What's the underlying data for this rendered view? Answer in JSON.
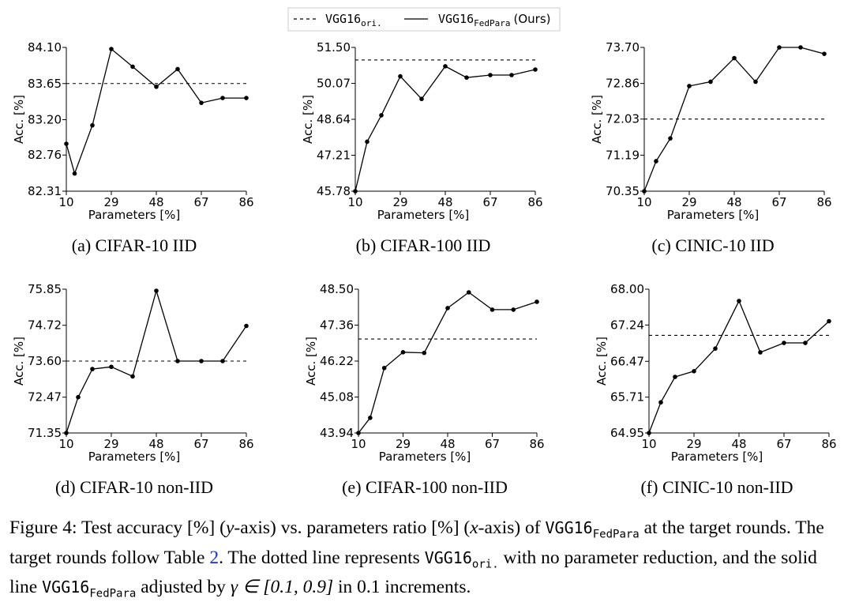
{
  "legend": {
    "original": "VGG16",
    "original_sub": "ori.",
    "fedpara": "VGG16",
    "fedpara_sub": "FedPara",
    "fedpara_suffix": "(Ours)"
  },
  "chart_data": [
    {
      "type": "line",
      "caption": "(a) CIFAR-10 IID",
      "xlabel": "Parameters [%]",
      "ylabel": "Acc. [%]",
      "xticks": [
        10,
        29,
        48,
        67,
        86
      ],
      "yticks": [
        "82.31",
        "82.76",
        "83.20",
        "83.65",
        "84.10"
      ],
      "ylim": [
        82.31,
        84.1
      ],
      "xlim": [
        10,
        86
      ],
      "baseline": 83.65,
      "series": [
        {
          "x": [
            10,
            13.5,
            21,
            29,
            38,
            48,
            57,
            67,
            76,
            86
          ],
          "y": [
            82.9,
            82.53,
            83.13,
            84.08,
            83.86,
            83.61,
            83.83,
            83.41,
            83.47,
            83.47
          ]
        }
      ]
    },
    {
      "type": "line",
      "caption": "(b) CIFAR-100 IID",
      "xlabel": "Parameters [%]",
      "ylabel": "Acc. [%]",
      "xticks": [
        10,
        29,
        48,
        67,
        86
      ],
      "yticks": [
        "45.78",
        "47.21",
        "48.64",
        "50.07",
        "51.50"
      ],
      "ylim": [
        45.78,
        51.5
      ],
      "xlim": [
        10,
        86
      ],
      "baseline": 51.0,
      "series": [
        {
          "x": [
            10,
            15,
            21,
            29,
            38,
            48,
            57,
            67,
            76,
            86
          ],
          "y": [
            45.78,
            47.75,
            48.8,
            50.35,
            49.45,
            50.75,
            50.3,
            50.4,
            50.4,
            50.62
          ]
        }
      ]
    },
    {
      "type": "line",
      "caption": "(c) CINIC-10 IID",
      "xlabel": "Parameters [%]",
      "ylabel": "Acc. [%]",
      "xticks": [
        10,
        29,
        48,
        67,
        86
      ],
      "yticks": [
        "70.35",
        "71.19",
        "72.03",
        "72.86",
        "73.70"
      ],
      "ylim": [
        70.35,
        73.7
      ],
      "xlim": [
        10,
        86
      ],
      "baseline": 72.03,
      "series": [
        {
          "x": [
            10,
            15,
            21,
            29,
            38,
            48,
            57,
            67,
            76,
            86
          ],
          "y": [
            70.35,
            71.05,
            71.58,
            72.8,
            72.9,
            73.45,
            72.9,
            73.7,
            73.7,
            73.55
          ]
        }
      ]
    },
    {
      "type": "line",
      "caption": "(d) CIFAR-10 non-IID",
      "xlabel": "Parameters [%]",
      "ylabel": "Acc. [%]",
      "xticks": [
        10,
        29,
        48,
        67,
        86
      ],
      "yticks": [
        "71.35",
        "72.47",
        "73.60",
        "74.72",
        "75.85"
      ],
      "ylim": [
        71.35,
        75.85
      ],
      "xlim": [
        10,
        86
      ],
      "baseline": 73.6,
      "series": [
        {
          "x": [
            10,
            15,
            21,
            29,
            38,
            48,
            57,
            67,
            76,
            86
          ],
          "y": [
            71.35,
            72.47,
            73.35,
            73.42,
            73.12,
            75.8,
            73.6,
            73.6,
            73.6,
            74.7
          ]
        }
      ]
    },
    {
      "type": "line",
      "caption": "(e) CIFAR-100 non-IID",
      "xlabel": "Parameters [%]",
      "ylabel": "Acc. [%]",
      "xticks": [
        10,
        29,
        48,
        67,
        86
      ],
      "yticks": [
        "43.94",
        "45.08",
        "46.22",
        "47.36",
        "48.50"
      ],
      "ylim": [
        43.94,
        48.5
      ],
      "xlim": [
        10,
        86
      ],
      "baseline": 46.92,
      "series": [
        {
          "x": [
            10,
            15,
            21,
            29,
            38,
            48,
            57,
            67,
            76,
            86
          ],
          "y": [
            43.94,
            44.42,
            46.0,
            46.5,
            46.48,
            47.9,
            48.4,
            47.85,
            47.85,
            48.1
          ]
        }
      ]
    },
    {
      "type": "line",
      "caption": "(f) CINIC-10 non-IID",
      "xlabel": "Parameters [%]",
      "ylabel": "Acc. [%]",
      "xticks": [
        10,
        29,
        48,
        67,
        86
      ],
      "yticks": [
        "64.95",
        "65.71",
        "66.47",
        "67.24",
        "68.00"
      ],
      "ylim": [
        64.95,
        68.0
      ],
      "xlim": [
        10,
        86
      ],
      "baseline": 67.02,
      "series": [
        {
          "x": [
            10,
            15,
            21,
            29,
            38,
            48,
            57,
            67,
            76,
            86
          ],
          "y": [
            64.95,
            65.6,
            66.14,
            66.26,
            66.74,
            67.75,
            66.66,
            66.86,
            66.86,
            67.32
          ]
        }
      ]
    }
  ],
  "caption": {
    "prefix": "Figure 4: Test accuracy [%] (",
    "y_var": "y",
    "mid1": "-axis) vs. parameters ratio [%] (",
    "x_var": "x",
    "mid2": "-axis) of ",
    "model1": "VGG16",
    "model1_sub": "FedPara",
    "line1_end": " at the target rounds. The target rounds follow Table ",
    "table_ref": "2",
    "line2_mid": ". The dotted line represents ",
    "model2": "VGG16",
    "model2_sub": "ori.",
    "line2_end": " with no parameter reduction, and the solid line ",
    "model3": "VGG16",
    "model3_sub": "FedPara",
    "line3_mid": " adjusted by ",
    "gamma": "γ ∈ [0.1, 0.9]",
    "line3_end": " in 0.1 increments."
  }
}
